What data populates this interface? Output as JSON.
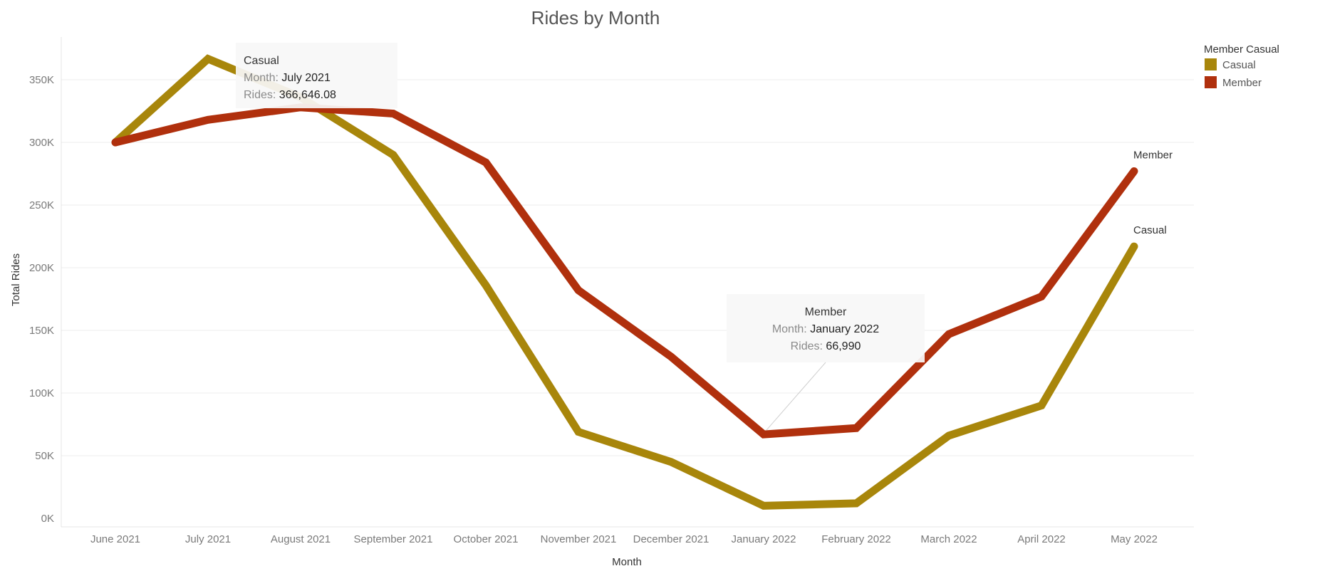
{
  "chart_data": {
    "type": "line",
    "title": "Rides by Month",
    "xlabel": "Month",
    "ylabel": "Total Rides",
    "categories": [
      "June 2021",
      "July 2021",
      "August 2021",
      "September 2021",
      "October 2021",
      "November 2021",
      "December 2021",
      "January 2022",
      "February 2022",
      "March 2022",
      "April 2022",
      "May 2022"
    ],
    "yticks": [
      "0K",
      "50K",
      "100K",
      "150K",
      "200K",
      "250K",
      "300K",
      "350K"
    ],
    "ylim": [
      0,
      375000
    ],
    "grid": true,
    "legend": {
      "title": "Member Casual",
      "placement": "top-right",
      "entries": [
        "Casual",
        "Member"
      ]
    },
    "series": [
      {
        "name": "Casual",
        "color": "#a8860b",
        "end_label": "Casual",
        "values": [
          300000,
          366646.08,
          336000,
          290000,
          186000,
          69000,
          45000,
          10000,
          12000,
          66000,
          90000,
          217000
        ]
      },
      {
        "name": "Member",
        "color": "#b0300d",
        "end_label": "Member",
        "values": [
          300000,
          318000,
          328000,
          323000,
          284000,
          182000,
          129000,
          66990,
          72000,
          147000,
          177000,
          277000
        ]
      }
    ],
    "tooltips": [
      {
        "series": "Casual",
        "header": "Casual",
        "month_key": "Month:",
        "month_value": "July 2021",
        "rides_key": "Rides:",
        "rides_value": "366,646.08"
      },
      {
        "series": "Member",
        "header": "Member",
        "month_key": "Month:",
        "month_value": "January 2022",
        "rides_key": "Rides:",
        "rides_value": "66,990"
      }
    ]
  }
}
